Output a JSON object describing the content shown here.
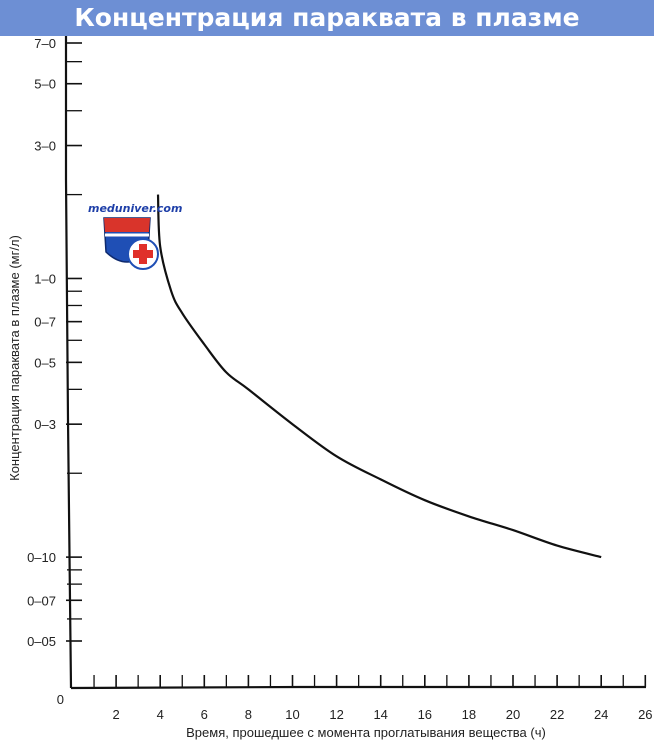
{
  "header": {
    "title": "Концентрация параквата в плазме"
  },
  "watermark": {
    "text": "meduniver.com"
  },
  "colors": {
    "title_bar": "#6d8fd4",
    "curve": "#111111",
    "axis": "#111111"
  },
  "chart_data": {
    "type": "line",
    "title": "Концентрация параквата в плазме",
    "xlabel": "Время, прошедшее с момента проглатывания вещества (ч)",
    "ylabel": "Концентрация параквата в плазме (мг/л)",
    "x_ticks": [
      2,
      4,
      6,
      8,
      10,
      12,
      14,
      16,
      18,
      20,
      22,
      24,
      26
    ],
    "xlim": [
      0,
      26
    ],
    "y_scale": "log",
    "y_tick_labels": [
      {
        "value": 7.0,
        "label": "7–0"
      },
      {
        "value": 5.0,
        "label": "5–0"
      },
      {
        "value": 3.0,
        "label": "3–0"
      },
      {
        "value": 1.0,
        "label": "1–0"
      },
      {
        "value": 0.7,
        "label": "0–7"
      },
      {
        "value": 0.5,
        "label": "0–5"
      },
      {
        "value": 0.3,
        "label": "0–3"
      },
      {
        "value": 0.1,
        "label": "0–10"
      },
      {
        "value": 0.07,
        "label": "0–07"
      },
      {
        "value": 0.05,
        "label": "0–05"
      }
    ],
    "y_zero_label": "0",
    "y_minor_ticks": [
      6.0,
      4.0,
      2.0,
      0.9,
      0.8,
      0.6,
      0.4,
      0.2,
      0.09,
      0.08,
      0.06
    ],
    "series": [
      {
        "x": [
          3.9,
          4.0,
          4.5,
          5.0,
          6.0,
          7.0,
          8.0,
          10.0,
          12.0,
          14.0,
          16.0,
          18.0,
          20.0,
          22.0,
          24.0
        ],
        "y": [
          2.0,
          1.3,
          0.9,
          0.75,
          0.58,
          0.46,
          0.4,
          0.3,
          0.23,
          0.19,
          0.16,
          0.14,
          0.125,
          0.11,
          0.1
        ]
      }
    ],
    "grid": false,
    "legend": "none"
  }
}
